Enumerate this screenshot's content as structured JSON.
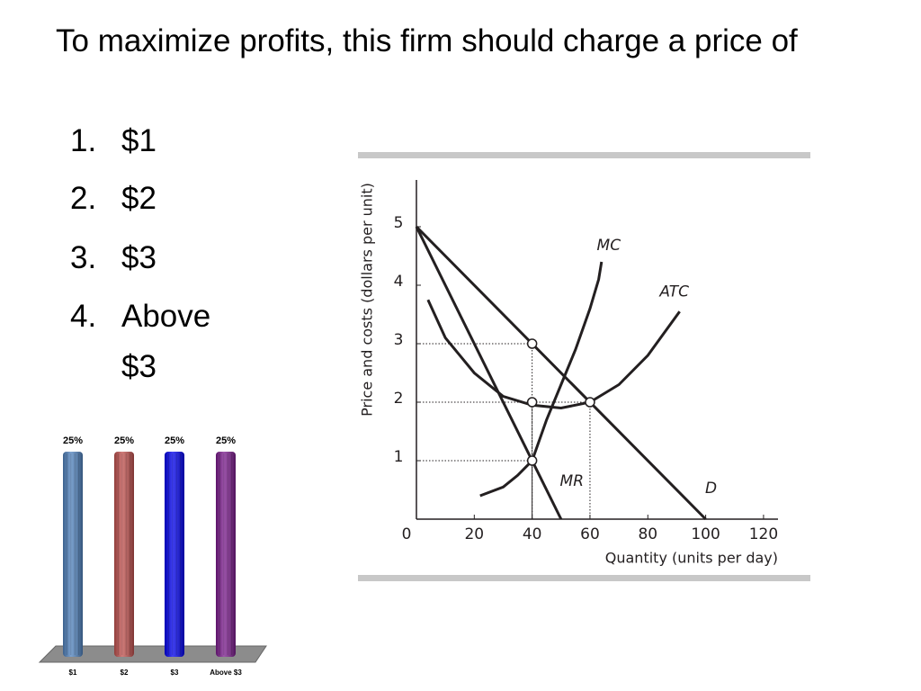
{
  "question": "To maximize profits, this firm should charge a price of",
  "option_numbers": [
    "1.",
    "2.",
    "3.",
    "4."
  ],
  "options": [
    "$1",
    "$2",
    "$3",
    "Above $3"
  ],
  "chart_data": [
    {
      "type": "bar",
      "categories": [
        "$1",
        "$2",
        "$3",
        "Above $3"
      ],
      "values": [
        25,
        25,
        25,
        25
      ],
      "value_labels": [
        "25%",
        "25%",
        "25%",
        "25%"
      ],
      "colors": [
        "#4f81bd",
        "#c0504d",
        "#0000ee",
        "#7a1a8c"
      ],
      "ylim": [
        0,
        25
      ]
    },
    {
      "type": "line",
      "xlabel": "Quantity (units per day)",
      "ylabel": "Price and costs (dollars per unit)",
      "xlim": [
        0,
        125
      ],
      "xticks": [
        0,
        20,
        40,
        60,
        80,
        100,
        120
      ],
      "ylim": [
        0,
        5.8
      ],
      "yticks": [
        1,
        2,
        3,
        4,
        5
      ],
      "series": [
        {
          "name": "MR",
          "color": "#231f20",
          "x": [
            0,
            50
          ],
          "values": [
            5,
            0
          ]
        },
        {
          "name": "D",
          "color": "#231f20",
          "x": [
            0,
            100
          ],
          "values": [
            5,
            0
          ]
        },
        {
          "name": "MC",
          "color": "#231f20",
          "x": [
            22,
            30,
            35,
            40,
            45,
            50,
            55,
            60,
            63,
            64
          ],
          "values": [
            0.4,
            0.55,
            0.75,
            1.0,
            1.7,
            2.3,
            2.9,
            3.6,
            4.1,
            4.4
          ]
        },
        {
          "name": "ATC",
          "color": "#231f20",
          "x": [
            4,
            10,
            20,
            30,
            40,
            50,
            60,
            70,
            80,
            91
          ],
          "values": [
            3.75,
            3.1,
            2.5,
            2.1,
            1.95,
            1.9,
            2.0,
            2.3,
            2.8,
            3.55
          ]
        }
      ],
      "points": {
        "x": [
          40,
          40,
          40,
          60
        ],
        "values": [
          3,
          2,
          1,
          2
        ]
      }
    }
  ]
}
